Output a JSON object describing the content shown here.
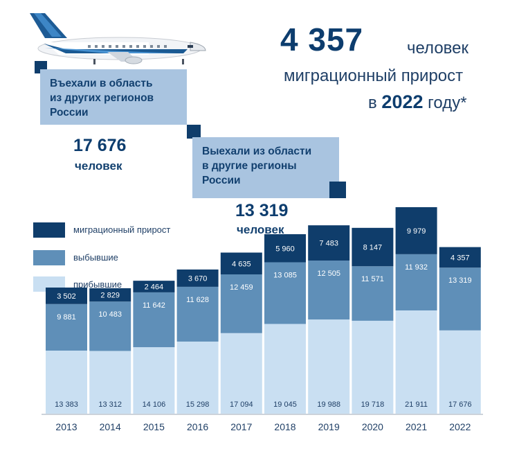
{
  "headline": {
    "number": "4 357",
    "unit": "человек",
    "line2": "миграционный прирост",
    "line3_prefix": "в",
    "line3_year": "2022",
    "line3_suffix": "году*"
  },
  "arrived_box": {
    "text_line1": "Въехали в область",
    "text_line2": "из других регионов",
    "text_line3": "России",
    "value": "17 676",
    "unit": "человек"
  },
  "departed_box": {
    "text_line1": "Выехали из области",
    "text_line2": "в другие регионы",
    "text_line3": "России",
    "value": "13 319",
    "unit": "человек"
  },
  "legend": [
    {
      "label": "миграционный прирост",
      "color": "#0f3d6b"
    },
    {
      "label": "выбывшие",
      "color": "#5f8fb8"
    },
    {
      "label": "прибывшие",
      "color": "#c9dff2"
    }
  ],
  "chart_data": {
    "type": "bar",
    "stacked": true,
    "categories": [
      "2013",
      "2014",
      "2015",
      "2016",
      "2017",
      "2018",
      "2019",
      "2020",
      "2021",
      "2022"
    ],
    "series": [
      {
        "name": "прибывшие",
        "color": "#c9dff2",
        "values": [
          13383,
          13312,
          14106,
          15298,
          17094,
          19045,
          19988,
          19718,
          21911,
          17676
        ],
        "labels": [
          "13 383",
          "13 312",
          "14 106",
          "15 298",
          "17 094",
          "19 045",
          "19 988",
          "19 718",
          "21 911",
          "17 676"
        ]
      },
      {
        "name": "выбывшие",
        "color": "#5f8fb8",
        "values": [
          9881,
          10483,
          11642,
          11628,
          12459,
          13085,
          12505,
          11571,
          11932,
          13319
        ],
        "labels": [
          "9 881",
          "10 483",
          "11 642",
          "11 628",
          "12 459",
          "13 085",
          "12 505",
          "11 571",
          "11 932",
          "13 319"
        ]
      },
      {
        "name": "миграционный прирост",
        "color": "#0f3d6b",
        "values": [
          3502,
          2829,
          2464,
          3670,
          4635,
          5960,
          7483,
          8147,
          9979,
          4357
        ],
        "labels": [
          "3 502",
          "2 829",
          "2 464",
          "3 670",
          "4 635",
          "5 960",
          "7 483",
          "8 147",
          "9 979",
          "4 357"
        ]
      }
    ],
    "grid": false,
    "legend_position": "top-left"
  }
}
